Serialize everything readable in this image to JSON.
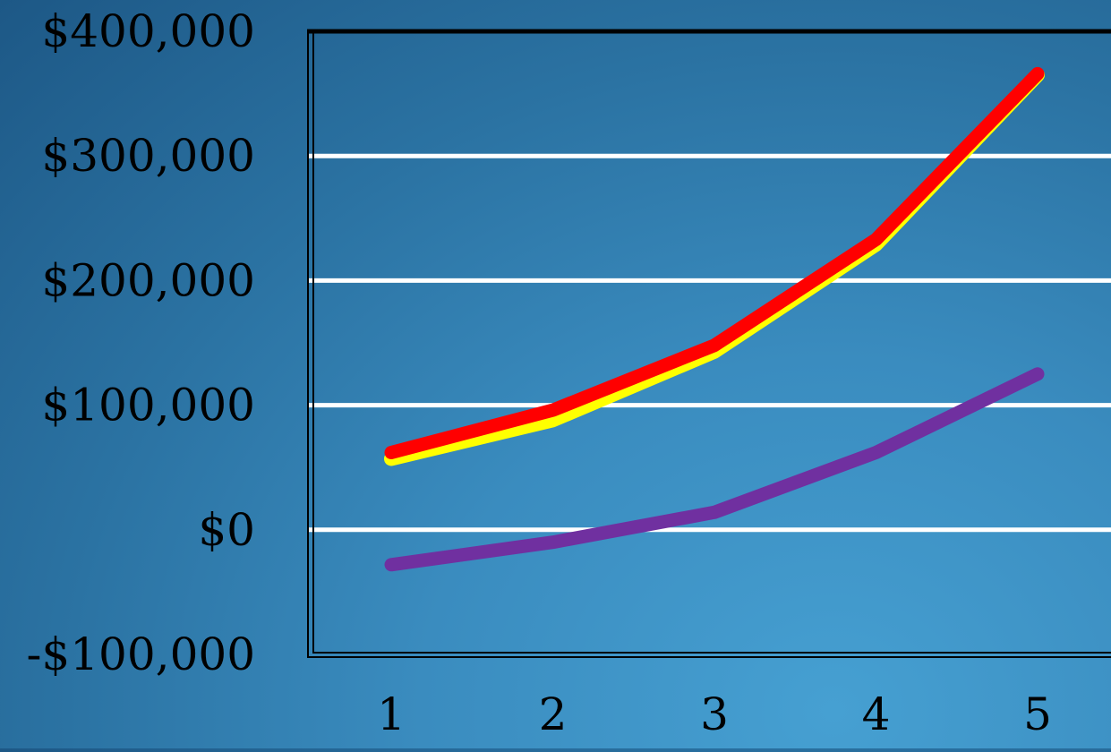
{
  "chart_data": {
    "type": "line",
    "title": "",
    "xlabel": "",
    "ylabel": "",
    "categories": [
      "1",
      "2",
      "3",
      "4",
      "5"
    ],
    "y_ticks": [
      {
        "value": 400000,
        "label": "$400,000"
      },
      {
        "value": 300000,
        "label": "$300,000"
      },
      {
        "value": 200000,
        "label": "$200,000"
      },
      {
        "value": 100000,
        "label": "$100,000"
      },
      {
        "value": 0,
        "label": "$0"
      },
      {
        "value": -100000,
        "label": "-$100,000"
      }
    ],
    "ylim": [
      -100000,
      400000
    ],
    "grid": true,
    "legend": "none",
    "series": [
      {
        "color": "#ffff00",
        "values": [
          57000,
          88000,
          143000,
          229000,
          365000
        ]
      },
      {
        "color": "#ff0000",
        "values": [
          62000,
          96000,
          148000,
          233000,
          366000
        ]
      },
      {
        "color": "#7030a0",
        "values": [
          -28000,
          -10000,
          14000,
          62000,
          125000
        ]
      }
    ],
    "colors": {
      "gridline": "#ffffff",
      "frame": "#000000",
      "text": "#000000"
    }
  }
}
